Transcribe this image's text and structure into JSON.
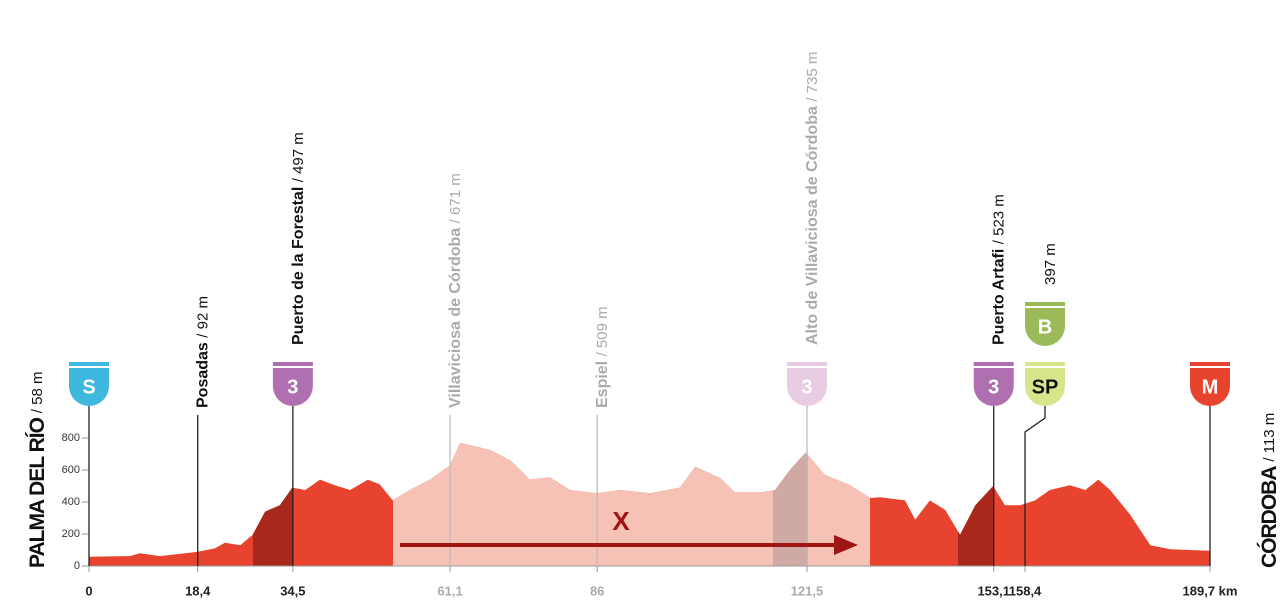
{
  "chart_data": {
    "type": "area",
    "profile": {
      "km": [
        0,
        6.9,
        8.6,
        12,
        18.3,
        21.3,
        23,
        25.6,
        27.7,
        29.8,
        32.3,
        34.4,
        36.6,
        39.1,
        41.6,
        44.2,
        47.2,
        49.2,
        51.4,
        54.3,
        57.7,
        61.1,
        62.8,
        64.5,
        67.9,
        71.3,
        74.6,
        78,
        81.4,
        86,
        89.9,
        95,
        100,
        102.6,
        106.8,
        109.3,
        113.6,
        116.1,
        118.6,
        121.3,
        124.5,
        128.8,
        132.2,
        133.9,
        138.1,
        139.8,
        142.3,
        144.9,
        147.4,
        150,
        153,
        155,
        157.6,
        160.1,
        162.6,
        166,
        168.6,
        170.8,
        172.8,
        176.2,
        179.6,
        183,
        189.7
      ],
      "elevation": [
        58,
        62,
        80,
        62,
        88,
        110,
        145,
        130,
        195,
        340,
        380,
        490,
        475,
        540,
        505,
        475,
        540,
        510,
        410,
        475,
        540,
        630,
        770,
        755,
        725,
        660,
        540,
        555,
        475,
        455,
        475,
        455,
        490,
        620,
        550,
        460,
        460,
        475,
        600,
        710,
        570,
        505,
        425,
        430,
        410,
        290,
        410,
        350,
        195,
        380,
        500,
        380,
        380,
        410,
        475,
        505,
        475,
        540,
        475,
        320,
        130,
        105,
        95
      ],
      "color": "#e8432e"
    },
    "xlim": [
      0,
      189.7
    ],
    "ylim": [
      0,
      800
    ],
    "yticks": [
      0,
      200,
      400,
      600,
      800
    ],
    "xticks": [
      0,
      {
        "value": 18.4,
        "label": "18,4"
      },
      {
        "value": 34.5,
        "label": "34,5"
      },
      {
        "value": 61.1,
        "label": "61,1"
      },
      86,
      {
        "value": 121.5,
        "label": "121,5"
      },
      {
        "value": 153.1,
        "label": "153,1"
      },
      {
        "value": 158.4,
        "label": "158,4"
      },
      {
        "value": 189.7,
        "label": "189,7 km"
      }
    ],
    "start": {
      "name": "PALMA DEL RÍO",
      "altitude": "/ 58 m",
      "badge": {
        "label": "S",
        "color": "#3fb8e0",
        "text_color": "#ffffff"
      }
    },
    "finish": {
      "name": "CÓRDOBA",
      "altitude": "/ 113 m",
      "badge": {
        "label": "M",
        "color": "#e8432e",
        "text_color": "#ffffff"
      }
    },
    "waypoints": [
      {
        "name": "Posadas",
        "altitude": "/ 92 m",
        "km": 18.4,
        "faded": false,
        "badges": []
      },
      {
        "name": "Puerto de la Forestal",
        "altitude": "/ 497 m",
        "km": 34.5,
        "faded": false,
        "badges": [
          {
            "label": "3",
            "color": "#b06fb0",
            "text_color": "#ffffff"
          }
        ]
      },
      {
        "name": "Villaviciosa de Córdoba",
        "altitude": "/ 671 m",
        "km": 61.1,
        "faded": true,
        "badges": []
      },
      {
        "name": "Espiel",
        "altitude": "/ 509 m",
        "km": 86,
        "faded": true,
        "badges": []
      },
      {
        "name": "Alto de Villaviciosa de Córdoba",
        "altitude": "/ 735 m",
        "km": 121.5,
        "faded": true,
        "badges": [
          {
            "label": "3",
            "color": "#e8cce3",
            "text_color": "#ffffff"
          }
        ]
      },
      {
        "name": "Puerto Artafi",
        "altitude": "/ 523 m",
        "km": 153.1,
        "faded": false,
        "badges": [
          {
            "label": "3",
            "color": "#b06fb0",
            "text_color": "#ffffff"
          }
        ]
      },
      {
        "altitude": "397 m",
        "km": 158.4,
        "faded": false,
        "badges": [
          {
            "label": "SP",
            "color": "#d7e68a",
            "text_color": "#111111"
          },
          {
            "label": "B",
            "color": "#9bbb5a",
            "text_color": "#ffffff"
          }
        ]
      }
    ],
    "neutralized_label": "X"
  }
}
